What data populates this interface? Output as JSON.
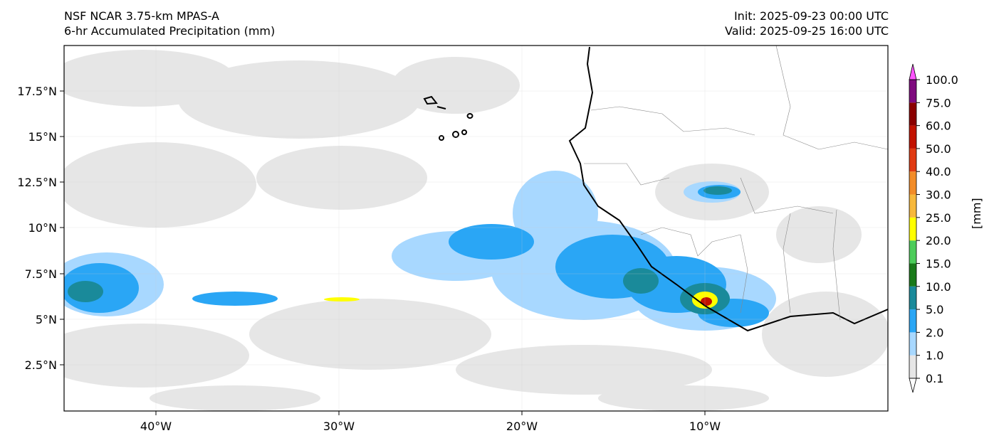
{
  "header": {
    "model": "NSF NCAR 3.75-km MPAS-A",
    "field": "6-hr Accumulated Precipitation (mm)",
    "init": "Init: 2025-09-23 00:00 UTC",
    "valid": "Valid: 2025-09-25 16:00 UTC"
  },
  "axes": {
    "lon_ticks": [
      "40°W",
      "30°W",
      "20°W",
      "10°W"
    ],
    "lat_ticks": [
      "17.5°N",
      "15°N",
      "12.5°N",
      "10°N",
      "7.5°N",
      "5°N",
      "2.5°N"
    ]
  },
  "colorbar": {
    "units": "[mm]",
    "levels": [
      "0.1",
      "1.0",
      "2.0",
      "5.0",
      "10.0",
      "15.0",
      "20.0",
      "25.0",
      "30.0",
      "40.0",
      "50.0",
      "60.0",
      "75.0",
      "100.0"
    ],
    "colors": [
      "#e6e6e6",
      "#a8d8ff",
      "#2aa6f5",
      "#1a8a9a",
      "#1a7a1a",
      "#4ccc5a",
      "#ffff00",
      "#f7b83b",
      "#f28c28",
      "#e03a12",
      "#c21200",
      "#8b0000",
      "#7f0a7f",
      "#ff55ff"
    ]
  }
}
